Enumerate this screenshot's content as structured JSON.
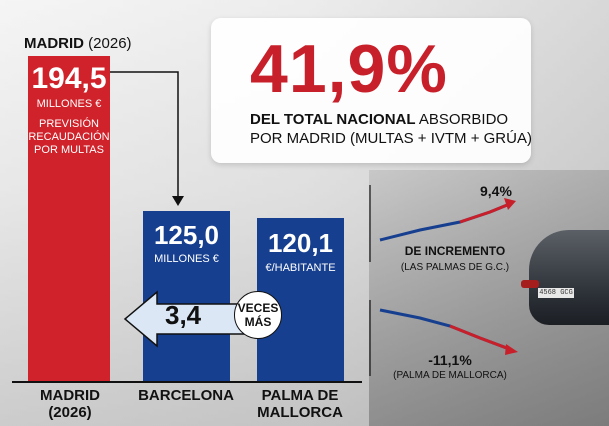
{
  "header": {
    "city": "MADRID",
    "year": "(2026)"
  },
  "headline": {
    "percentage": "41,9%",
    "line1_bold": "DEL TOTAL NACIONAL",
    "line1_rest": " ABSORBIDO",
    "line2": "POR MADRID (MULTAS + IVTM + GRÚA)"
  },
  "comparison": {
    "times_value": "3,4",
    "times_line1": "VECES",
    "times_line2": "MÁS"
  },
  "trends": {
    "up": {
      "value": "9,4%",
      "label": "DE INCREMENTO",
      "sub": "(LAS PALMAS DE G.C.)",
      "color": "#c8202a"
    },
    "down": {
      "value": "-11,1%",
      "sub": "(PALMA DE MALLORCA)",
      "color": "#c8202a"
    }
  },
  "background": {
    "plate": "4568 GCG"
  },
  "colors": {
    "madrid": "#d0222a",
    "others": "#173f8f",
    "accent": "#c8202a"
  },
  "chart_data": {
    "type": "bar",
    "categories": [
      "MADRID (2026)",
      "BARCELONA",
      "PALMA DE MALLORCA"
    ],
    "category_lines": [
      [
        "MADRID",
        "(2026)"
      ],
      [
        "BARCELONA"
      ],
      [
        "PALMA DE",
        "MALLORCA"
      ]
    ],
    "values": [
      194.5,
      125.0,
      120.1
    ],
    "value_labels": [
      "194,5",
      "125,0",
      "120,1"
    ],
    "unit_labels": [
      [
        "MILLONES €"
      ],
      [
        "MILLONES €"
      ],
      [
        "€/HABITANTE"
      ]
    ],
    "notes": [
      [
        "PREVISIÓN",
        "RECAUDACIÓN",
        "POR MULTAS"
      ],
      [],
      []
    ],
    "title": "",
    "xlabel": "",
    "ylabel": ""
  }
}
